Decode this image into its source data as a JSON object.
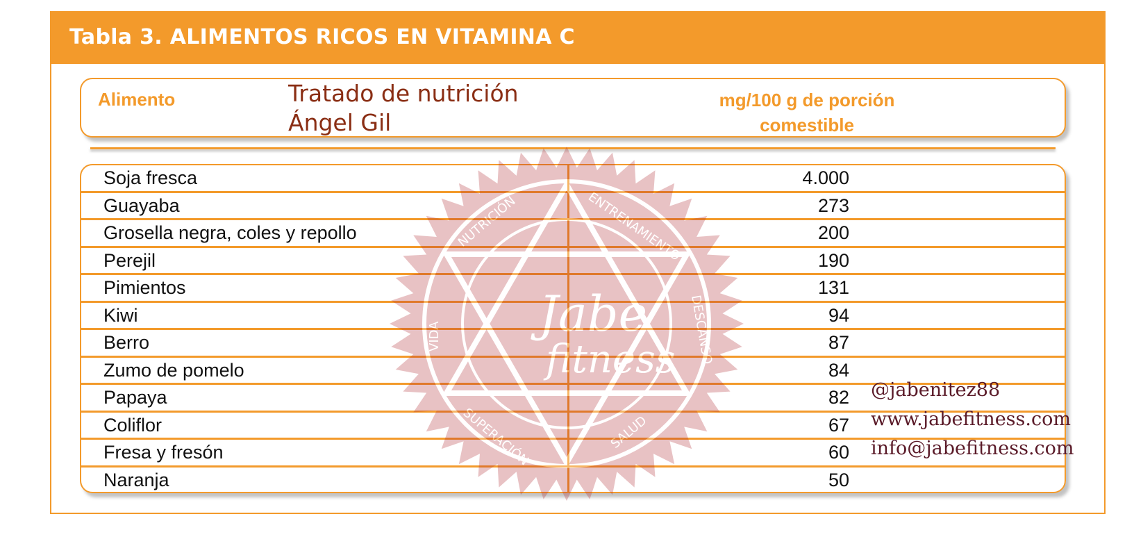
{
  "title": "Tabla 3. ALIMENTOS RICOS EN VITAMINA C",
  "source_line1": "Tratado de nutrición",
  "source_line2": "Ángel Gil",
  "columns": {
    "food": "Alimento",
    "value_line1": "mg/100 g de porción",
    "value_line2": "comestible"
  },
  "rows": [
    {
      "food": "Soja fresca",
      "value": "4.000"
    },
    {
      "food": "Guayaba",
      "value": "273"
    },
    {
      "food": "Grosella negra, coles y repollo",
      "value": "200"
    },
    {
      "food": "Perejil",
      "value": "190"
    },
    {
      "food": "Pimientos",
      "value": "131"
    },
    {
      "food": "Kiwi",
      "value": "94"
    },
    {
      "food": "Berro",
      "value": "87"
    },
    {
      "food": "Zumo de pomelo",
      "value": "84"
    },
    {
      "food": "Papaya",
      "value": "82"
    },
    {
      "food": "Coliflor",
      "value": "67"
    },
    {
      "food": "Fresa y fresón",
      "value": "60"
    },
    {
      "food": "Naranja",
      "value": "50"
    }
  ],
  "watermark": {
    "brand_line1": "Jabe",
    "brand_line2": "fitness",
    "words": [
      "NUTRICIÓN",
      "ENTRENAMIENTO",
      "DESCANSO",
      "SALUD",
      "SUPERACIÓN",
      "VIDA"
    ]
  },
  "contact": {
    "handle": "@jabenitez88",
    "website": "www.jabefitness.com",
    "email": "info@jabefitness.com"
  },
  "colors": {
    "accent": "#f39a2b",
    "source_text": "#8a2e14",
    "watermark": "#b0282e"
  }
}
